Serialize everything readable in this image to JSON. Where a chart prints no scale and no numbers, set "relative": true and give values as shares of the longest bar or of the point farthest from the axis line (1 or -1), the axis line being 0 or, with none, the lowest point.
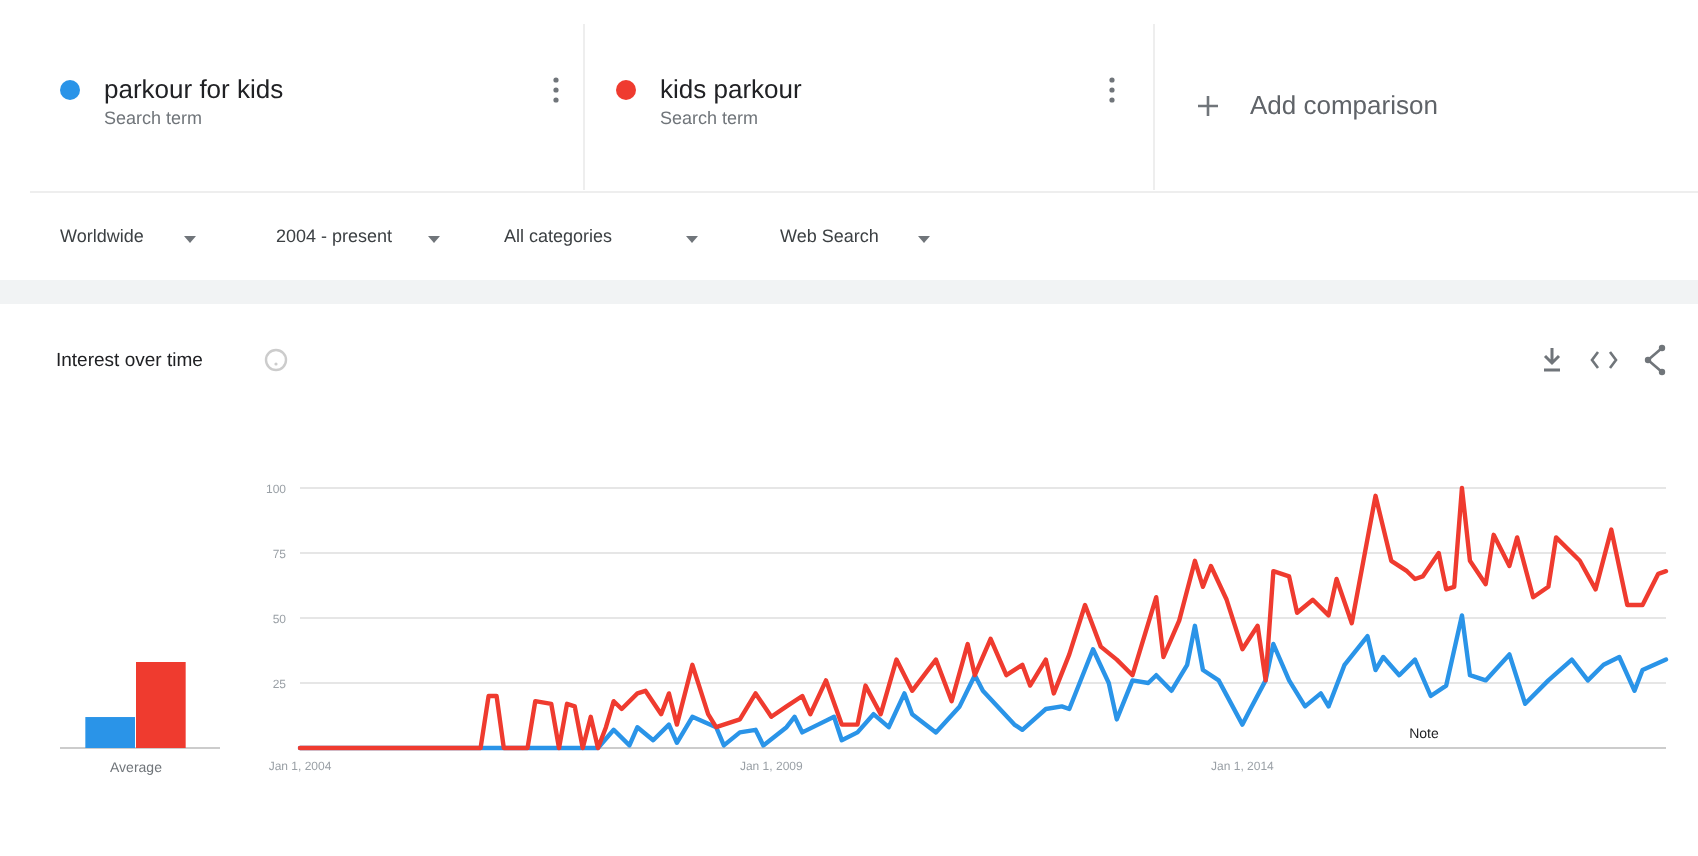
{
  "chart_data": [
    {
      "type": "bar",
      "relative": true,
      "categories": [
        "Average"
      ],
      "series": [
        {
          "color": "#2a94e8",
          "values": [
            0.36
          ]
        },
        {
          "color": "#ef3b2f",
          "values": [
            1
          ]
        }
      ]
    },
    {
      "type": "line",
      "title": "Interest over time",
      "legend": "top",
      "grid": "y",
      "xlim": [
        "2004-01",
        "2018-07"
      ],
      "ylim": [
        0,
        100
      ],
      "yticks": [
        25,
        50,
        75,
        100
      ],
      "xticks": [
        {
          "value": "2004-01-01",
          "label": "Jan 1, 2004"
        },
        {
          "value": "2009-01-01",
          "label": "Jan 1, 2009"
        },
        {
          "value": "2014-01-01",
          "label": "Jan 1, 2014"
        }
      ],
      "annotations": [
        "Search term",
        "Search term",
        "Add comparison",
        "Worldwide",
        "2004 - present",
        "All categories",
        "Web Search",
        "Note"
      ],
      "series": [
        {
          "name": "parkour for kids",
          "color": "#2a94e8",
          "x": [
            "2004-01",
            "2007-03",
            "2007-05",
            "2007-07",
            "2007-08",
            "2007-10",
            "2007-12",
            "2008-01",
            "2008-03",
            "2008-06",
            "2008-07",
            "2008-09",
            "2008-11",
            "2008-12",
            "2009-03",
            "2009-04",
            "2009-05",
            "2009-07",
            "2009-09",
            "2009-10",
            "2009-12",
            "2010-02",
            "2010-04",
            "2010-06",
            "2010-07",
            "2010-10",
            "2011-01",
            "2011-03",
            "2011-04",
            "2011-08",
            "2011-09",
            "2011-12",
            "2012-02",
            "2012-03",
            "2012-06",
            "2012-08",
            "2012-09",
            "2012-11",
            "2013-01",
            "2013-02",
            "2013-04",
            "2013-06",
            "2013-07",
            "2013-08",
            "2013-10",
            "2014-01",
            "2014-02",
            "2014-04",
            "2014-05",
            "2014-07",
            "2014-09",
            "2014-11",
            "2014-12",
            "2015-02",
            "2015-05",
            "2015-06",
            "2015-07",
            "2015-09",
            "2015-11",
            "2016-01",
            "2016-03",
            "2016-05",
            "2016-06",
            "2016-08",
            "2016-11",
            "2017-01",
            "2017-04",
            "2017-07",
            "2017-09",
            "2017-11",
            "2018-01",
            "2018-03",
            "2018-04",
            "2018-07"
          ],
          "values": [
            0,
            0,
            7,
            1,
            8,
            3,
            9,
            2,
            12,
            8,
            1,
            6,
            7,
            1,
            8,
            12,
            6,
            9,
            12,
            3,
            6,
            13,
            8,
            21,
            13,
            6,
            16,
            28,
            22,
            9,
            7,
            15,
            16,
            15,
            38,
            25,
            11,
            26,
            25,
            28,
            22,
            32,
            47,
            30,
            26,
            9,
            15,
            26,
            40,
            26,
            16,
            21,
            16,
            32,
            43,
            30,
            35,
            28,
            34,
            20,
            24,
            51,
            28,
            26,
            36,
            17,
            26,
            34,
            26,
            32,
            35,
            22,
            30,
            34
          ]
        },
        {
          "name": "kids parkour",
          "color": "#ef3b2f",
          "x": [
            "2004-01",
            "2005-12",
            "2006-01",
            "2006-02",
            "2006-03",
            "2006-06",
            "2006-07",
            "2006-09",
            "2006-10",
            "2006-11",
            "2006-12",
            "2007-01",
            "2007-02",
            "2007-03",
            "2007-04",
            "2007-05",
            "2007-06",
            "2007-08",
            "2007-09",
            "2007-11",
            "2007-12",
            "2008-01",
            "2008-03",
            "2008-05",
            "2008-06",
            "2008-09",
            "2008-11",
            "2009-01",
            "2009-03",
            "2009-05",
            "2009-06",
            "2009-08",
            "2009-10",
            "2009-12",
            "2010-01",
            "2010-03",
            "2010-05",
            "2010-07",
            "2010-10",
            "2010-12",
            "2011-02",
            "2011-03",
            "2011-05",
            "2011-07",
            "2011-09",
            "2011-10",
            "2011-12",
            "2012-01",
            "2012-03",
            "2012-05",
            "2012-07",
            "2012-09",
            "2012-11",
            "2013-02",
            "2013-03",
            "2013-05",
            "2013-07",
            "2013-08",
            "2013-09",
            "2013-11",
            "2014-01",
            "2014-03",
            "2014-04",
            "2014-05",
            "2014-07",
            "2014-08",
            "2014-10",
            "2014-12",
            "2015-01",
            "2015-03",
            "2015-06",
            "2015-08",
            "2015-10",
            "2015-11",
            "2015-12",
            "2016-02",
            "2016-03",
            "2016-04",
            "2016-05",
            "2016-06",
            "2016-08",
            "2016-09",
            "2016-11",
            "2016-12",
            "2017-02",
            "2017-04",
            "2017-05",
            "2017-08",
            "2017-10",
            "2017-12",
            "2018-02",
            "2018-04",
            "2018-06",
            "2018-07"
          ],
          "values": [
            0,
            0,
            20,
            20,
            0,
            0,
            18,
            17,
            0,
            17,
            16,
            0,
            12,
            0,
            8,
            18,
            15,
            21,
            22,
            13,
            21,
            9,
            32,
            13,
            8,
            11,
            21,
            12,
            16,
            20,
            13,
            26,
            9,
            9,
            24,
            13,
            34,
            22,
            34,
            18,
            40,
            28,
            42,
            28,
            32,
            24,
            34,
            21,
            36,
            55,
            39,
            34,
            28,
            58,
            35,
            49,
            72,
            62,
            70,
            57,
            38,
            47,
            26,
            68,
            66,
            52,
            57,
            51,
            65,
            48,
            97,
            72,
            68,
            65,
            66,
            75,
            61,
            62,
            100,
            72,
            63,
            82,
            70,
            81,
            58,
            62,
            81,
            72,
            61,
            84,
            55,
            55,
            67,
            68
          ]
        }
      ]
    }
  ]
}
